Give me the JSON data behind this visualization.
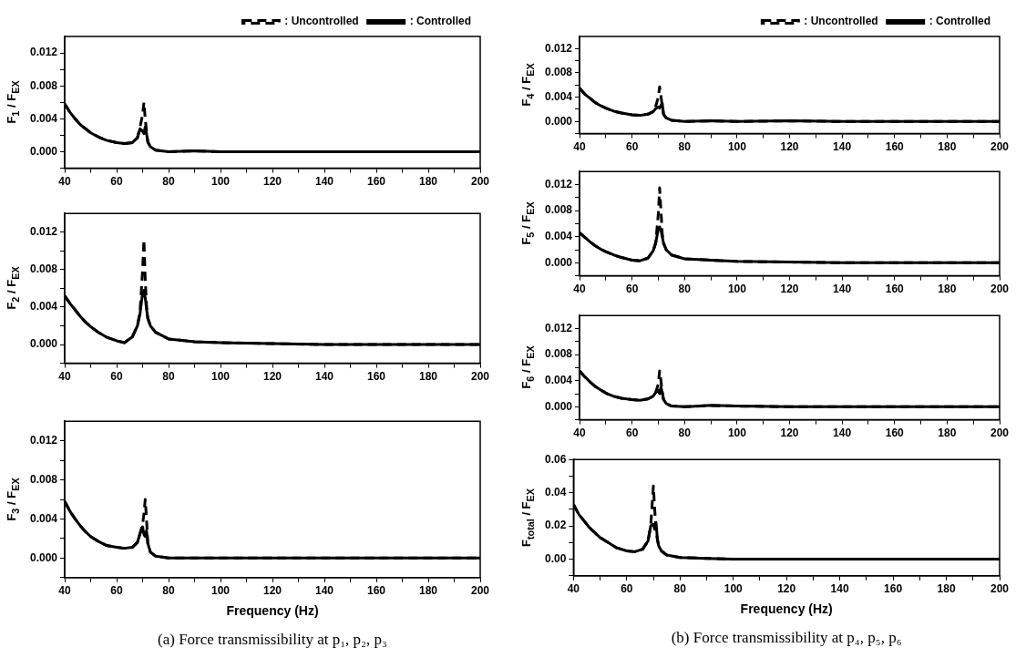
{
  "chart_data": [
    {
      "type": "line",
      "ylabel": "F$_{1}$ / F$_{EX}$",
      "legend": "top right",
      "grid": false,
      "marker": "none",
      "x": [
        40,
        42,
        44,
        46,
        48,
        50,
        53,
        56,
        60,
        63,
        66,
        68,
        69,
        70,
        70.5,
        71,
        71.5,
        72,
        73,
        75,
        80,
        90,
        100,
        120,
        140,
        160,
        180,
        200
      ],
      "xlim": [
        40,
        200
      ],
      "xticks": [
        40,
        {
          "value": 50,
          "label": null
        },
        60,
        {
          "value": 70,
          "label": null
        },
        80,
        {
          "value": 90,
          "label": null
        },
        100,
        {
          "value": 110,
          "label": null
        },
        120,
        {
          "value": 130,
          "label": null
        },
        140,
        {
          "value": 150,
          "label": null
        },
        160,
        {
          "value": 170,
          "label": null
        },
        180,
        {
          "value": 190,
          "label": null
        },
        200
      ],
      "ylim": [
        -0.002,
        0.014
      ],
      "yticks": [
        {
          "value": -0.002,
          "label": null
        },
        {
          "value": 0,
          "label": "0.000"
        },
        {
          "value": 0.002,
          "label": null
        },
        {
          "value": 0.004,
          "label": "0.004"
        },
        {
          "value": 0.006,
          "label": null
        },
        {
          "value": 0.008,
          "label": "0.008"
        },
        {
          "value": 0.01,
          "label": null
        },
        {
          "value": 0.012,
          "label": "0.012"
        }
      ],
      "series": [
        {
          "name": ": Uncontrolled",
          "color": "#000000",
          "line_style": "dashed",
          "values": [
            0.0058,
            0.0048,
            0.004,
            0.0033,
            0.0028,
            0.0023,
            0.0018,
            0.0014,
            0.0011,
            0.001,
            0.0011,
            0.0017,
            0.003,
            0.0045,
            0.006,
            0.004,
            0.0025,
            0.0012,
            0.0006,
            0.0002,
            0,
            0.0001,
            0,
            0,
            0,
            0,
            0,
            0
          ]
        },
        {
          "name": ": Controlled",
          "color": "#000000",
          "line_style": "solid",
          "values": [
            0.0058,
            0.0048,
            0.004,
            0.0033,
            0.0028,
            0.0023,
            0.0018,
            0.0014,
            0.0011,
            0.001,
            0.0011,
            0.0017,
            0.0028,
            0.0025,
            0.0022,
            0.003,
            0.0022,
            0.0012,
            0.0006,
            0.0002,
            0,
            0.0001,
            0,
            0,
            0,
            0,
            0,
            0
          ]
        }
      ]
    },
    {
      "type": "line",
      "ylabel": "F$_{2}$ / F$_{EX}$",
      "grid": false,
      "marker": "none",
      "x": [
        40,
        42,
        44,
        46,
        48,
        50,
        53,
        56,
        60,
        63,
        66,
        68,
        69,
        70,
        70.5,
        71,
        71.5,
        72,
        73,
        75,
        80,
        90,
        100,
        120,
        140,
        160,
        180,
        200
      ],
      "xlim": [
        40,
        200
      ],
      "xticks": [
        40,
        {
          "value": 50,
          "label": null
        },
        60,
        {
          "value": 70,
          "label": null
        },
        80,
        {
          "value": 90,
          "label": null
        },
        100,
        {
          "value": 110,
          "label": null
        },
        120,
        {
          "value": 130,
          "label": null
        },
        140,
        {
          "value": 150,
          "label": null
        },
        160,
        {
          "value": 170,
          "label": null
        },
        180,
        {
          "value": 190,
          "label": null
        },
        200
      ],
      "ylim": [
        -0.002,
        0.014
      ],
      "yticks": [
        {
          "value": -0.002,
          "label": null
        },
        {
          "value": 0,
          "label": "0.000"
        },
        {
          "value": 0.002,
          "label": null
        },
        {
          "value": 0.004,
          "label": "0.004"
        },
        {
          "value": 0.006,
          "label": null
        },
        {
          "value": 0.008,
          "label": "0.008"
        },
        {
          "value": 0.01,
          "label": null
        },
        {
          "value": 0.012,
          "label": "0.012"
        }
      ],
      "series": [
        {
          "color": "#000000",
          "line_style": "dashed",
          "values": [
            0.0052,
            0.0044,
            0.0037,
            0.003,
            0.0024,
            0.0019,
            0.0013,
            0.0008,
            0.0004,
            0.0002,
            0.0008,
            0.002,
            0.0035,
            0.008,
            0.0112,
            0.007,
            0.0042,
            0.0028,
            0.002,
            0.0013,
            0.0006,
            0.0003,
            0.0002,
            0.0001,
            0,
            0,
            0,
            0
          ]
        },
        {
          "color": "#000000",
          "line_style": "solid",
          "values": [
            0.0052,
            0.0044,
            0.0037,
            0.003,
            0.0024,
            0.0019,
            0.0013,
            0.0008,
            0.0004,
            0.0002,
            0.0008,
            0.002,
            0.0033,
            0.0055,
            0.0058,
            0.005,
            0.0038,
            0.0028,
            0.002,
            0.0013,
            0.0006,
            0.0003,
            0.0002,
            0.0001,
            0,
            0,
            0,
            0
          ]
        }
      ]
    },
    {
      "type": "line",
      "ylabel": "F$_{3}$ / F$_{EX}$",
      "xlabel": "Frequency (Hz)",
      "grid": false,
      "marker": "none",
      "annotations": [
        "(a)  Force transmissibility at p₁, p₂, p₃"
      ],
      "x": [
        40,
        42,
        44,
        46,
        48,
        50,
        53,
        56,
        60,
        63,
        66,
        68,
        69,
        70,
        70.5,
        71,
        71.5,
        72,
        73,
        75,
        80,
        90,
        100,
        120,
        140,
        160,
        180,
        200
      ],
      "xlim": [
        40,
        200
      ],
      "xticks": [
        40,
        {
          "value": 50,
          "label": null
        },
        60,
        {
          "value": 70,
          "label": null
        },
        80,
        {
          "value": 90,
          "label": null
        },
        100,
        {
          "value": 110,
          "label": null
        },
        120,
        {
          "value": 130,
          "label": null
        },
        140,
        {
          "value": 150,
          "label": null
        },
        160,
        {
          "value": 170,
          "label": null
        },
        180,
        {
          "value": 190,
          "label": null
        },
        200
      ],
      "ylim": [
        -0.002,
        0.014
      ],
      "yticks": [
        {
          "value": -0.002,
          "label": null
        },
        {
          "value": 0,
          "label": "0.000"
        },
        {
          "value": 0.002,
          "label": null
        },
        {
          "value": 0.004,
          "label": "0.004"
        },
        {
          "value": 0.006,
          "label": null
        },
        {
          "value": 0.008,
          "label": "0.008"
        },
        {
          "value": 0.01,
          "label": null
        },
        {
          "value": 0.012,
          "label": "0.012"
        }
      ],
      "series": [
        {
          "color": "#000000",
          "line_style": "dashed",
          "values": [
            0.0058,
            0.0048,
            0.004,
            0.0033,
            0.0027,
            0.0022,
            0.0017,
            0.0013,
            0.0011,
            0.001,
            0.0011,
            0.0016,
            0.0025,
            0.0035,
            0.0045,
            0.006,
            0.004,
            0.0015,
            0.0006,
            0.0002,
            0,
            0,
            0,
            0,
            0,
            0,
            0,
            0
          ]
        },
        {
          "color": "#000000",
          "line_style": "solid",
          "values": [
            0.0058,
            0.0048,
            0.004,
            0.0033,
            0.0027,
            0.0022,
            0.0017,
            0.0013,
            0.0011,
            0.001,
            0.0011,
            0.0016,
            0.0025,
            0.0032,
            0.0024,
            0.0022,
            0.0028,
            0.0015,
            0.0006,
            0.0002,
            0,
            0,
            0,
            0,
            0,
            0,
            0,
            0
          ]
        }
      ]
    },
    {
      "type": "line",
      "ylabel": "F$_{4}$ / F$_{EX}$",
      "legend": "top right",
      "grid": false,
      "marker": "none",
      "x": [
        40,
        42,
        44,
        46,
        48,
        50,
        53,
        56,
        60,
        63,
        66,
        68,
        69,
        70,
        70.5,
        71,
        71.5,
        72,
        73,
        75,
        80,
        90,
        100,
        120,
        140,
        160,
        180,
        200
      ],
      "xlim": [
        40,
        200
      ],
      "xticks": [
        40,
        {
          "value": 50,
          "label": null
        },
        60,
        {
          "value": 70,
          "label": null
        },
        80,
        {
          "value": 90,
          "label": null
        },
        100,
        {
          "value": 110,
          "label": null
        },
        120,
        {
          "value": 130,
          "label": null
        },
        140,
        {
          "value": 150,
          "label": null
        },
        160,
        {
          "value": 170,
          "label": null
        },
        180,
        {
          "value": 190,
          "label": null
        },
        200
      ],
      "ylim": [
        -0.002,
        0.014
      ],
      "yticks": [
        {
          "value": -0.002,
          "label": null
        },
        {
          "value": 0,
          "label": "0.000"
        },
        {
          "value": 0.002,
          "label": null
        },
        {
          "value": 0.004,
          "label": "0.004"
        },
        {
          "value": 0.006,
          "label": null
        },
        {
          "value": 0.008,
          "label": "0.008"
        },
        {
          "value": 0.01,
          "label": null
        },
        {
          "value": 0.012,
          "label": "0.012"
        }
      ],
      "series": [
        {
          "name": ": Uncontrolled",
          "color": "#000000",
          "line_style": "dashed",
          "values": [
            0.0055,
            0.0045,
            0.0038,
            0.0031,
            0.0026,
            0.0022,
            0.0017,
            0.0014,
            0.0011,
            0.001,
            0.0012,
            0.0016,
            0.0025,
            0.004,
            0.0057,
            0.0042,
            0.0025,
            0.0012,
            0.0006,
            0.0002,
            0,
            0.0001,
            0,
            0.0001,
            0,
            0,
            0,
            0
          ]
        },
        {
          "name": ": Controlled",
          "color": "#000000",
          "line_style": "solid",
          "values": [
            0.0055,
            0.0045,
            0.0038,
            0.0031,
            0.0026,
            0.0022,
            0.0017,
            0.0014,
            0.0011,
            0.001,
            0.0012,
            0.0016,
            0.0021,
            0.0024,
            0.0022,
            0.0027,
            0.003,
            0.0012,
            0.0006,
            0.0002,
            0,
            0.0001,
            0,
            0.0001,
            0,
            0,
            0,
            0
          ]
        }
      ]
    },
    {
      "type": "line",
      "ylabel": "F$_{5}$ / F$_{EX}$",
      "grid": false,
      "marker": "none",
      "x": [
        40,
        42,
        44,
        46,
        48,
        50,
        53,
        56,
        60,
        63,
        66,
        68,
        69,
        70,
        70.5,
        71,
        71.5,
        72,
        73,
        75,
        80,
        90,
        100,
        120,
        140,
        160,
        180,
        200
      ],
      "xlim": [
        40,
        200
      ],
      "xticks": [
        40,
        {
          "value": 50,
          "label": null
        },
        60,
        {
          "value": 70,
          "label": null
        },
        80,
        {
          "value": 90,
          "label": null
        },
        100,
        {
          "value": 110,
          "label": null
        },
        120,
        {
          "value": 130,
          "label": null
        },
        140,
        {
          "value": 150,
          "label": null
        },
        160,
        {
          "value": 170,
          "label": null
        },
        180,
        {
          "value": 190,
          "label": null
        },
        200
      ],
      "ylim": [
        -0.002,
        0.014
      ],
      "yticks": [
        {
          "value": -0.002,
          "label": null
        },
        {
          "value": 0,
          "label": "0.000"
        },
        {
          "value": 0.002,
          "label": null
        },
        {
          "value": 0.004,
          "label": "0.004"
        },
        {
          "value": 0.006,
          "label": null
        },
        {
          "value": 0.008,
          "label": "0.008"
        },
        {
          "value": 0.01,
          "label": null
        },
        {
          "value": 0.012,
          "label": "0.012"
        }
      ],
      "series": [
        {
          "color": "#000000",
          "line_style": "dashed",
          "values": [
            0.0046,
            0.0039,
            0.0032,
            0.0026,
            0.0021,
            0.0017,
            0.0012,
            0.0008,
            0.0004,
            0.0003,
            0.0007,
            0.0018,
            0.003,
            0.0075,
            0.0115,
            0.008,
            0.0045,
            0.003,
            0.002,
            0.0012,
            0.0006,
            0.0004,
            0.0002,
            0.0001,
            0,
            0,
            0,
            0
          ]
        },
        {
          "color": "#000000",
          "line_style": "solid",
          "values": [
            0.0046,
            0.0039,
            0.0032,
            0.0026,
            0.0021,
            0.0017,
            0.0012,
            0.0008,
            0.0004,
            0.0003,
            0.0007,
            0.0018,
            0.003,
            0.0052,
            0.0055,
            0.005,
            0.004,
            0.003,
            0.002,
            0.0012,
            0.0006,
            0.0004,
            0.0002,
            0.0001,
            0,
            0,
            0,
            0
          ]
        }
      ]
    },
    {
      "type": "line",
      "ylabel": "F$_{6}$ / F$_{EX}$",
      "grid": false,
      "marker": "none",
      "x": [
        40,
        42,
        44,
        46,
        48,
        50,
        53,
        56,
        60,
        63,
        66,
        68,
        69,
        70,
        70.5,
        71,
        71.5,
        72,
        73,
        75,
        80,
        90,
        100,
        120,
        140,
        160,
        180,
        200
      ],
      "xlim": [
        40,
        200
      ],
      "xticks": [
        40,
        {
          "value": 50,
          "label": null
        },
        60,
        {
          "value": 70,
          "label": null
        },
        80,
        {
          "value": 90,
          "label": null
        },
        100,
        {
          "value": 110,
          "label": null
        },
        120,
        {
          "value": 130,
          "label": null
        },
        140,
        {
          "value": 150,
          "label": null
        },
        160,
        {
          "value": 170,
          "label": null
        },
        180,
        {
          "value": 190,
          "label": null
        },
        200
      ],
      "ylim": [
        -0.002,
        0.014
      ],
      "yticks": [
        {
          "value": -0.002,
          "label": null
        },
        {
          "value": 0,
          "label": "0.000"
        },
        {
          "value": 0.002,
          "label": null
        },
        {
          "value": 0.004,
          "label": "0.004"
        },
        {
          "value": 0.006,
          "label": null
        },
        {
          "value": 0.008,
          "label": "0.008"
        },
        {
          "value": 0.01,
          "label": null
        },
        {
          "value": 0.012,
          "label": "0.012"
        }
      ],
      "series": [
        {
          "color": "#000000",
          "line_style": "dashed",
          "values": [
            0.0055,
            0.0046,
            0.0038,
            0.0031,
            0.0026,
            0.0021,
            0.0016,
            0.0013,
            0.0011,
            0.001,
            0.0012,
            0.0016,
            0.0022,
            0.0035,
            0.0055,
            0.004,
            0.0022,
            0.0011,
            0.0005,
            0.0001,
            0,
            0.0002,
            0.0001,
            0,
            0,
            0,
            0,
            0
          ]
        },
        {
          "color": "#000000",
          "line_style": "solid",
          "values": [
            0.0055,
            0.0046,
            0.0038,
            0.0031,
            0.0026,
            0.0021,
            0.0016,
            0.0013,
            0.0011,
            0.001,
            0.0012,
            0.0016,
            0.0022,
            0.0025,
            0.002,
            0.003,
            0.0022,
            0.0011,
            0.0005,
            0.0001,
            0,
            0.0002,
            0.0001,
            0,
            0,
            0,
            0,
            0
          ]
        }
      ]
    },
    {
      "type": "line",
      "ylabel": "F$_{total}$ / F$_{EX}$",
      "xlabel": "Frequency (Hz)",
      "grid": false,
      "marker": "none",
      "annotations": [
        "(b)  Force transmissibility at p₄, p₅, p₆"
      ],
      "x": [
        40,
        42,
        44,
        46,
        48,
        50,
        53,
        56,
        60,
        63,
        66,
        68,
        69,
        70,
        70.5,
        71,
        71.5,
        72,
        73,
        75,
        80,
        90,
        100,
        120,
        140,
        160,
        180,
        200
      ],
      "xlim": [
        40,
        200
      ],
      "xticks": [
        40,
        {
          "value": 50,
          "label": null
        },
        60,
        {
          "value": 70,
          "label": null
        },
        80,
        {
          "value": 90,
          "label": null
        },
        100,
        {
          "value": 110,
          "label": null
        },
        120,
        {
          "value": 130,
          "label": null
        },
        140,
        {
          "value": 150,
          "label": null
        },
        160,
        {
          "value": 170,
          "label": null
        },
        180,
        {
          "value": 190,
          "label": null
        },
        200
      ],
      "ylim": [
        -0.01,
        0.06
      ],
      "yticks": [
        {
          "value": -0.01,
          "label": null
        },
        {
          "value": 0,
          "label": "0.00"
        },
        {
          "value": 0.01,
          "label": null
        },
        {
          "value": 0.02,
          "label": "0.02"
        },
        {
          "value": 0.03,
          "label": null
        },
        {
          "value": 0.04,
          "label": "0.04"
        },
        {
          "value": 0.05,
          "label": null
        },
        {
          "value": 0.06,
          "label": "0.06"
        }
      ],
      "series": [
        {
          "color": "#000000",
          "line_style": "dashed",
          "values": [
            0.033,
            0.027,
            0.023,
            0.019,
            0.016,
            0.013,
            0.01,
            0.007,
            0.005,
            0.0045,
            0.006,
            0.011,
            0.02,
            0.044,
            0.03,
            0.018,
            0.012,
            0.008,
            0.005,
            0.0025,
            0.001,
            0.0005,
            0,
            0,
            0,
            0,
            0,
            0
          ]
        },
        {
          "color": "#000000",
          "line_style": "solid",
          "values": [
            0.033,
            0.027,
            0.023,
            0.019,
            0.016,
            0.013,
            0.01,
            0.007,
            0.005,
            0.0045,
            0.006,
            0.011,
            0.02,
            0.021,
            0.018,
            0.022,
            0.012,
            0.008,
            0.005,
            0.0025,
            0.001,
            0.0005,
            0,
            0,
            0,
            0,
            0,
            0
          ]
        }
      ]
    }
  ]
}
